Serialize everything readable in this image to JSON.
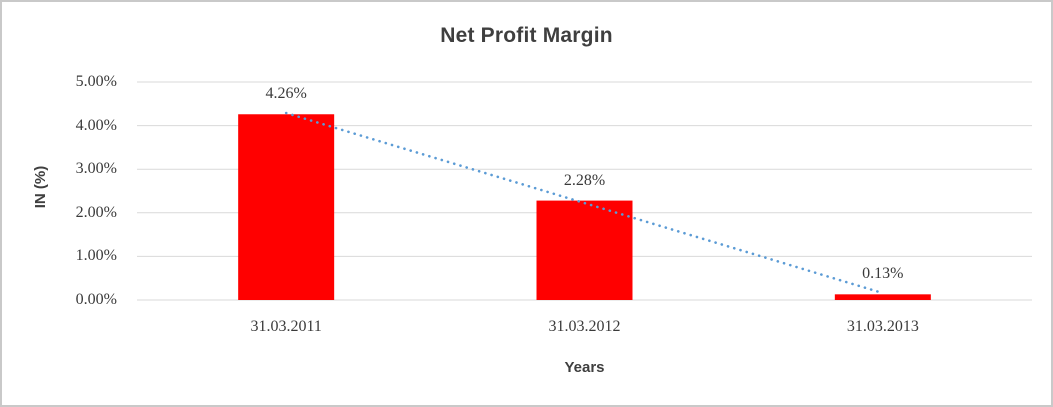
{
  "chart_data": {
    "type": "bar",
    "title": "Net Profit Margin",
    "categories": [
      "31.03.2011",
      "31.03.2012",
      "31.03.2013"
    ],
    "values": [
      4.26,
      2.28,
      0.13
    ],
    "data_labels": [
      "4.26%",
      "2.28%",
      "0.13%"
    ],
    "xlabel": "Years",
    "ylabel": "IN (%)",
    "ylim": [
      0,
      5
    ],
    "ytick_labels": [
      "0.00%",
      "1.00%",
      "2.00%",
      "3.00%",
      "4.00%",
      "5.00%"
    ],
    "grid": true,
    "legend": "none",
    "bar_color": "#FF0000",
    "trendline": {
      "type": "linear",
      "style": "dotted",
      "color": "#5B9BD5"
    }
  },
  "colors": {
    "title_text": "#3F3F3F",
    "axis_text": "#3A3A3A",
    "gridline": "#D9D9D9",
    "bar": "#FF0000",
    "trendline": "#5B9BD5",
    "frame_border": "#C9C9C9",
    "background": "#FFFFFF"
  }
}
